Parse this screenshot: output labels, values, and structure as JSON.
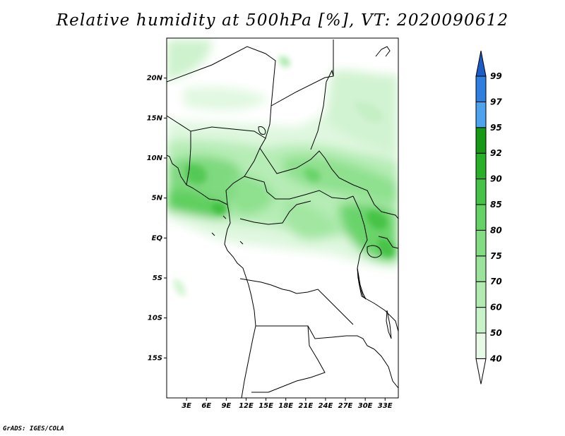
{
  "title": "Relative humidity at 500hPa [%], VT: 2020090612",
  "footer": "GrADS: IGES/COLA",
  "map": {
    "lon_range": [
      0,
      35
    ],
    "lat_range": [
      -20,
      25
    ],
    "lat_ticks": [
      {
        "value": 20,
        "label": "20N"
      },
      {
        "value": 15,
        "label": "15N"
      },
      {
        "value": 10,
        "label": "10N"
      },
      {
        "value": 5,
        "label": "5N"
      },
      {
        "value": 0,
        "label": "EQ"
      },
      {
        "value": -5,
        "label": "5S"
      },
      {
        "value": -10,
        "label": "10S"
      },
      {
        "value": -15,
        "label": "15S"
      }
    ],
    "lon_ticks": [
      {
        "value": 3,
        "label": "3E"
      },
      {
        "value": 6,
        "label": "6E"
      },
      {
        "value": 9,
        "label": "9E"
      },
      {
        "value": 12,
        "label": "12E"
      },
      {
        "value": 15,
        "label": "15E"
      },
      {
        "value": 18,
        "label": "18E"
      },
      {
        "value": 21,
        "label": "21E"
      },
      {
        "value": 24,
        "label": "24E"
      },
      {
        "value": 27,
        "label": "27E"
      },
      {
        "value": 30,
        "label": "30E"
      },
      {
        "value": 33,
        "label": "33E"
      }
    ]
  },
  "colorbar": {
    "levels": [
      "40",
      "50",
      "60",
      "70",
      "75",
      "80",
      "85",
      "90",
      "92",
      "95",
      "97",
      "99"
    ],
    "colors": [
      "#e6fae6",
      "#c8f2c8",
      "#b2ebb2",
      "#9ae39a",
      "#82dc82",
      "#64d264",
      "#46c346",
      "#28b028",
      "#169a16",
      "#4da3ee",
      "#2f7fe0",
      "#1a5cc8"
    ]
  }
}
